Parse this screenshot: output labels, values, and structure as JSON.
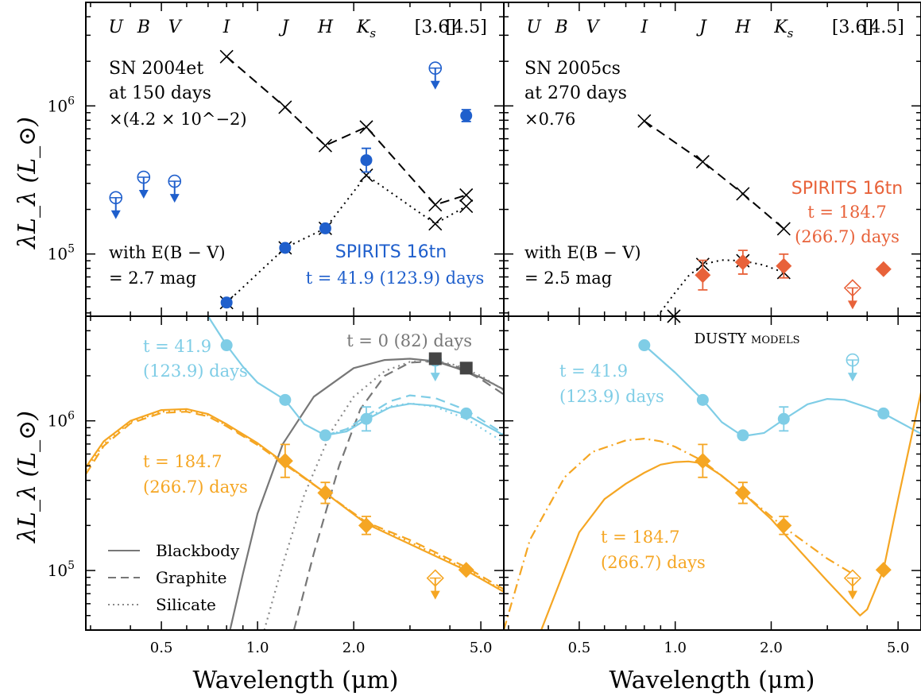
{
  "figure": {
    "ylabel": "λL_λ (L_⊙)",
    "xlabel": "Wavelength (μm)",
    "x_ticks": [
      0.5,
      1.0,
      2.0,
      5.0
    ],
    "x_tick_labels": [
      "0.5",
      "1.0",
      "2.0",
      "5.0"
    ],
    "y_tick_labels": [
      {
        "value": 100000,
        "label": "10^5"
      },
      {
        "value": 1000000,
        "label": "10^6"
      }
    ],
    "colors": {
      "blue": "#1f5fcc",
      "orange_red": "#e8623a",
      "light_blue": "#7fcde6",
      "orange": "#f5a623",
      "gray": "#444444"
    }
  },
  "chart_data": [
    {
      "type": "scatter",
      "panel": "top-left",
      "xscale": "log",
      "yscale": "log",
      "xlim": [
        0.29,
        5.9
      ],
      "ylim": [
        38000,
        5000000
      ],
      "band_labels": [
        {
          "text": "U",
          "x": 0.36
        },
        {
          "text": "B",
          "x": 0.44
        },
        {
          "text": "V",
          "x": 0.55
        },
        {
          "text": "I",
          "x": 0.8
        },
        {
          "text": "J",
          "x": 1.22
        },
        {
          "text": "H",
          "x": 1.63
        },
        {
          "text": "K_s",
          "x": 2.19
        },
        {
          "text": "[3.6]",
          "x": 3.6
        },
        {
          "text": "[4.5]",
          "x": 4.5
        }
      ],
      "annotations": {
        "sn_name": "SN 2004et",
        "sn_epoch": "at 150 days",
        "sn_scale": "×(4.2 × 10^−2)",
        "ext_line1": "with E(B − V)",
        "ext_line2": "= 2.7 mag",
        "spirits_name": "SPIRITS 16tn",
        "spirits_epoch": "t = 41.9 (123.9) days"
      },
      "series": [
        {
          "name": "SN scaled",
          "style": "dashed-cross",
          "color": "#000000",
          "x": [
            0.8,
            1.22,
            1.63,
            2.19,
            3.6,
            4.5
          ],
          "y": [
            2150000,
            980000,
            540000,
            720000,
            215000,
            250000
          ]
        },
        {
          "name": "SPIRITS extinguished",
          "style": "dotted-cross",
          "color": "#000000",
          "x": [
            0.8,
            1.22,
            1.63,
            2.19,
            3.6,
            4.5
          ],
          "y": [
            47000,
            110000,
            149000,
            340000,
            160000,
            210000
          ]
        },
        {
          "name": "SPIRITS detections",
          "style": "filled-circle",
          "color": "#1f5fcc",
          "x": [
            0.8,
            1.22,
            1.63,
            2.19,
            4.5
          ],
          "y": [
            47000,
            110000,
            149000,
            430000,
            860000
          ],
          "err": [
            0.02,
            0.02,
            0.02,
            0.08,
            0.04
          ]
        },
        {
          "name": "SPIRITS upper limits",
          "style": "open-circle-limit",
          "color": "#1f5fcc",
          "x": [
            0.36,
            0.44,
            0.55,
            3.6
          ],
          "y": [
            240000,
            330000,
            310000,
            1800000
          ]
        }
      ]
    },
    {
      "type": "scatter",
      "panel": "top-right",
      "xscale": "log",
      "yscale": "log",
      "xlim": [
        0.29,
        5.9
      ],
      "ylim": [
        38000,
        5000000
      ],
      "band_labels": [
        {
          "text": "U",
          "x": 0.36
        },
        {
          "text": "B",
          "x": 0.44
        },
        {
          "text": "V",
          "x": 0.55
        },
        {
          "text": "I",
          "x": 0.8
        },
        {
          "text": "J",
          "x": 1.22
        },
        {
          "text": "H",
          "x": 1.63
        },
        {
          "text": "K_s",
          "x": 2.19
        },
        {
          "text": "[3.6]",
          "x": 3.6
        },
        {
          "text": "[4.5]",
          "x": 4.5
        }
      ],
      "annotations": {
        "sn_name": "SN 2005cs",
        "sn_epoch": "at 270 days",
        "sn_scale": "×0.76",
        "ext_line1": "with E(B − V)",
        "ext_line2": "= 2.5 mag",
        "spirits_name": "SPIRITS 16tn",
        "spirits_epoch1": "t = 184.7",
        "spirits_epoch2": "(266.7) days"
      },
      "series": [
        {
          "name": "SN scaled",
          "style": "dashed-cross",
          "color": "#000000",
          "x": [
            0.8,
            1.22,
            1.63,
            2.19
          ],
          "y": [
            790000,
            420000,
            255000,
            148000
          ]
        },
        {
          "name": "SPIRITS extinguished",
          "style": "dotted-cross",
          "color": "#000000",
          "x": [
            0.99,
            1.22,
            1.63,
            2.19
          ],
          "y": [
            38000,
            85000,
            90000,
            75000
          ],
          "curve_x": [
            0.88,
            1.0,
            1.1,
            1.22,
            1.4,
            1.63,
            1.9,
            2.19
          ],
          "curve_y": [
            38000,
            55000,
            71000,
            85000,
            91000,
            90000,
            84000,
            75000
          ]
        },
        {
          "name": "SPIRITS detections",
          "style": "filled-diamond",
          "color": "#e8623a",
          "x": [
            1.22,
            1.63,
            2.19,
            4.5
          ],
          "y": [
            72000,
            88000,
            83000,
            79000
          ],
          "err": [
            0.1,
            0.08,
            0.08,
            0.02
          ]
        },
        {
          "name": "SPIRITS upper limits",
          "style": "open-diamond-limit",
          "color": "#e8623a",
          "x": [
            3.6
          ],
          "y": [
            59000
          ]
        }
      ]
    },
    {
      "type": "line",
      "panel": "bottom-left",
      "xscale": "log",
      "yscale": "log",
      "xlim": [
        0.29,
        5.9
      ],
      "ylim": [
        40000,
        5000000
      ],
      "annotations": {
        "t1_line1": "t = 41.9",
        "t1_line2": "(123.9) days",
        "t2_line1": "t = 184.7",
        "t2_line2": "(266.7) days",
        "t0": "t = 0 (82) days"
      },
      "legend": {
        "placement": "bottom-left",
        "entries": [
          "Blackbody",
          "Graphite",
          "Silicate"
        ]
      },
      "series": [
        {
          "name": "Blackbody",
          "style": "solid",
          "color": "#777777",
          "x": [
            0.82,
            0.9,
            1.0,
            1.2,
            1.5,
            2.0,
            2.5,
            3.0,
            3.6,
            4.2,
            5.0,
            5.9
          ],
          "y": [
            40000,
            95000,
            240000,
            700000,
            1450000,
            2250000,
            2550000,
            2600000,
            2500000,
            2250000,
            1950000,
            1620000
          ]
        },
        {
          "name": "Graphite",
          "style": "dashed",
          "color": "#777777",
          "x": [
            1.3,
            1.5,
            1.8,
            2.1,
            2.5,
            3.0,
            3.6,
            4.2,
            5.0,
            5.9
          ],
          "y": [
            40000,
            130000,
            500000,
            1200000,
            2000000,
            2450000,
            2500000,
            2300000,
            1900000,
            1500000
          ]
        },
        {
          "name": "Silicate",
          "style": "dotted",
          "color": "#888888",
          "x": [
            1.05,
            1.2,
            1.4,
            1.7,
            2.0,
            2.5,
            3.0,
            3.6,
            4.2,
            5.0,
            5.9
          ],
          "y": [
            40000,
            110000,
            320000,
            850000,
            1450000,
            2150000,
            2480000,
            2520000,
            2350000,
            2000000,
            1600000
          ]
        },
        {
          "name": "t1 solid",
          "style": "solid",
          "color": "#7fcde6",
          "x": [
            0.7,
            0.8,
            0.9,
            1.0,
            1.22,
            1.4,
            1.63,
            1.9,
            2.19,
            2.6,
            3.0,
            3.6,
            4.5,
            5.9
          ],
          "y": [
            5000000,
            3200000,
            2300000,
            1800000,
            1380000,
            950000,
            800000,
            850000,
            1020000,
            1230000,
            1300000,
            1260000,
            1100000,
            800000
          ]
        },
        {
          "name": "t1 dashed",
          "style": "dashed",
          "color": "#7fcde6",
          "x": [
            1.63,
            1.9,
            2.19,
            2.6,
            3.0,
            3.6,
            4.5,
            5.9
          ],
          "y": [
            800000,
            880000,
            1080000,
            1350000,
            1480000,
            1420000,
            1180000,
            820000
          ]
        },
        {
          "name": "t1 dotted",
          "style": "dotted",
          "color": "#7fcde6",
          "x": [
            1.63,
            1.9,
            2.19,
            2.6,
            3.0,
            3.6,
            4.5,
            5.9
          ],
          "y": [
            800000,
            870000,
            1050000,
            1250000,
            1310000,
            1240000,
            1030000,
            720000
          ]
        },
        {
          "name": "t2 solid",
          "style": "solid",
          "color": "#f5a623",
          "x": [
            0.29,
            0.33,
            0.4,
            0.5,
            0.6,
            0.7,
            0.8,
            1.0,
            1.22,
            1.63,
            2.19,
            3.0,
            4.5,
            5.9
          ],
          "y": [
            490000,
            730000,
            1000000,
            1180000,
            1200000,
            1110000,
            950000,
            710000,
            520000,
            330000,
            205000,
            150000,
            100000,
            72000
          ]
        },
        {
          "name": "t2 dashed",
          "style": "dashed",
          "color": "#f5a623",
          "x": [
            0.29,
            0.33,
            0.4,
            0.5,
            0.6,
            0.7,
            0.8,
            1.0,
            1.22,
            1.63,
            2.19,
            3.0,
            4.5,
            5.9
          ],
          "y": [
            440000,
            680000,
            960000,
            1130000,
            1150000,
            1070000,
            920000,
            690000,
            510000,
            330000,
            210000,
            160000,
            105000,
            75000
          ]
        },
        {
          "name": "t2 dotted",
          "style": "dotted",
          "color": "#f5a623",
          "x": [
            0.29,
            0.33,
            0.4,
            0.5,
            0.6,
            0.7,
            0.8,
            1.0,
            1.22,
            1.63,
            2.19,
            3.0,
            4.5,
            5.9
          ],
          "y": [
            470000,
            700000,
            980000,
            1150000,
            1170000,
            1090000,
            930000,
            700000,
            515000,
            330000,
            208000,
            155000,
            102000,
            73000
          ]
        },
        {
          "name": "t1 data",
          "style": "filled-circle",
          "color": "#7fcde6",
          "x": [
            0.8,
            1.22,
            1.63,
            2.19,
            4.5
          ],
          "y": [
            3200000,
            1380000,
            800000,
            1030000,
            1120000
          ],
          "err": [
            0.03,
            0.03,
            0.025,
            0.08,
            0.03
          ]
        },
        {
          "name": "t1 limit",
          "style": "open-circle-limit",
          "color": "#7fcde6",
          "x": [
            3.6
          ],
          "y": [
            2550000
          ]
        },
        {
          "name": "t2 data",
          "style": "filled-diamond",
          "color": "#f5a623",
          "x": [
            1.22,
            1.63,
            2.19,
            4.5
          ],
          "y": [
            540000,
            330000,
            200000,
            101000
          ],
          "err": [
            0.11,
            0.07,
            0.06,
            0.03
          ]
        },
        {
          "name": "t2 limit",
          "style": "open-diamond-limit",
          "color": "#f5a623",
          "x": [
            3.6
          ],
          "y": [
            89000
          ]
        },
        {
          "name": "t0 data",
          "style": "filled-square",
          "color": "#444444",
          "x": [
            3.6,
            4.5
          ],
          "y": [
            2600000,
            2250000
          ]
        }
      ]
    },
    {
      "type": "line",
      "panel": "bottom-right",
      "xscale": "log",
      "yscale": "log",
      "xlim": [
        0.29,
        5.9
      ],
      "ylim": [
        40000,
        5000000
      ],
      "annotations": {
        "title": "DUSTY models",
        "t1_line1": "t = 41.9",
        "t1_line2": "(123.9) days",
        "t2_line1": "t = 184.7",
        "t2_line2": "(266.7) days"
      },
      "series": [
        {
          "name": "t1 model",
          "style": "solid",
          "color": "#7fcde6",
          "x": [
            0.8,
            1.0,
            1.22,
            1.4,
            1.63,
            1.9,
            2.19,
            2.6,
            3.0,
            3.4,
            4.0,
            4.5,
            5.9
          ],
          "y": [
            3200000,
            2100000,
            1380000,
            980000,
            790000,
            830000,
            1020000,
            1290000,
            1400000,
            1380000,
            1230000,
            1120000,
            820000
          ]
        },
        {
          "name": "t2 model solid",
          "style": "solid",
          "color": "#f5a623",
          "x": [
            0.38,
            0.5,
            0.6,
            0.7,
            0.8,
            0.9,
            1.0,
            1.1,
            1.22,
            1.4,
            1.63,
            2.0,
            2.5,
            3.0,
            3.5,
            3.8,
            4.0,
            4.3,
            4.5,
            5.0,
            5.9
          ],
          "y": [
            40000,
            180000,
            300000,
            380000,
            450000,
            510000,
            530000,
            535000,
            520000,
            430000,
            330000,
            220000,
            130000,
            85000,
            60000,
            50000,
            55000,
            80000,
            101000,
            300000,
            1550000
          ]
        },
        {
          "name": "t2 model dashdot",
          "style": "dashdot",
          "color": "#f5a623",
          "x": [
            0.29,
            0.35,
            0.45,
            0.55,
            0.7,
            0.8,
            0.9,
            1.0,
            1.22,
            1.63,
            2.19,
            3.0,
            3.6
          ],
          "y": [
            40000,
            160000,
            420000,
            620000,
            740000,
            760000,
            730000,
            670000,
            540000,
            330000,
            195000,
            120000,
            95000
          ]
        },
        {
          "name": "t1 data",
          "style": "filled-circle",
          "color": "#7fcde6",
          "x": [
            0.8,
            1.22,
            1.63,
            2.19,
            4.5
          ],
          "y": [
            3200000,
            1380000,
            800000,
            1030000,
            1120000
          ],
          "err": [
            0.03,
            0.03,
            0.025,
            0.08,
            0.03
          ]
        },
        {
          "name": "t1 limit",
          "style": "open-circle-limit",
          "color": "#7fcde6",
          "x": [
            3.6
          ],
          "y": [
            2550000
          ]
        },
        {
          "name": "t2 data",
          "style": "filled-diamond",
          "color": "#f5a623",
          "x": [
            1.22,
            1.63,
            2.19,
            4.5
          ],
          "y": [
            540000,
            330000,
            200000,
            101000
          ],
          "err": [
            0.11,
            0.07,
            0.06,
            0.03
          ]
        },
        {
          "name": "t2 limit",
          "style": "open-diamond-limit",
          "color": "#f5a623",
          "x": [
            3.6
          ],
          "y": [
            89000
          ]
        }
      ]
    }
  ]
}
